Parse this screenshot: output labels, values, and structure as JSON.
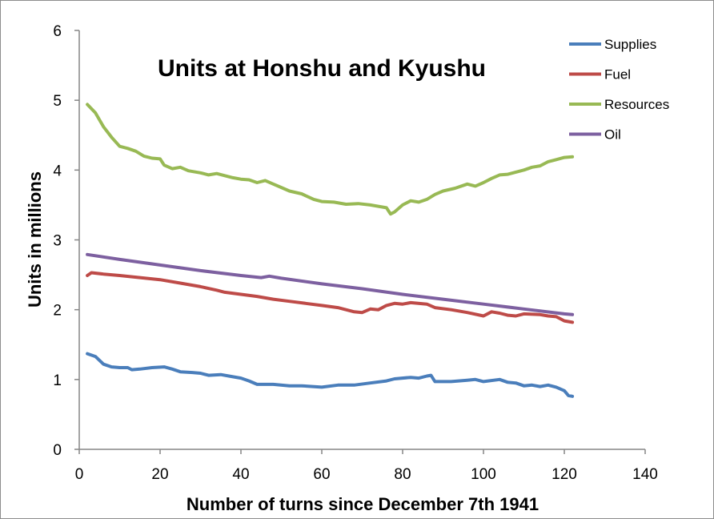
{
  "chart_data": {
    "type": "line",
    "title": "Units at Honshu and Kyushu",
    "xlabel": "Number of turns since December 7th 1941",
    "ylabel": "Units in millions",
    "xlim": [
      0,
      140
    ],
    "ylim": [
      0,
      6
    ],
    "x_ticks": [
      "0",
      "20",
      "40",
      "60",
      "80",
      "100",
      "120",
      "140"
    ],
    "y_ticks": [
      "0",
      "1",
      "2",
      "3",
      "4",
      "5",
      "6"
    ],
    "grid": false,
    "legend_position": "top-right",
    "series": [
      {
        "name": "Supplies",
        "color": "#4a7ebb",
        "points": [
          [
            2,
            1.37
          ],
          [
            4,
            1.33
          ],
          [
            6,
            1.22
          ],
          [
            8,
            1.18
          ],
          [
            10,
            1.17
          ],
          [
            12,
            1.17
          ],
          [
            13,
            1.14
          ],
          [
            15,
            1.15
          ],
          [
            18,
            1.17
          ],
          [
            21,
            1.18
          ],
          [
            23,
            1.15
          ],
          [
            25,
            1.11
          ],
          [
            28,
            1.1
          ],
          [
            30,
            1.09
          ],
          [
            32,
            1.06
          ],
          [
            35,
            1.07
          ],
          [
            37,
            1.05
          ],
          [
            40,
            1.02
          ],
          [
            42,
            0.98
          ],
          [
            44,
            0.93
          ],
          [
            48,
            0.93
          ],
          [
            52,
            0.91
          ],
          [
            55,
            0.91
          ],
          [
            60,
            0.89
          ],
          [
            64,
            0.92
          ],
          [
            68,
            0.92
          ],
          [
            72,
            0.95
          ],
          [
            76,
            0.98
          ],
          [
            78,
            1.01
          ],
          [
            82,
            1.03
          ],
          [
            84,
            1.02
          ],
          [
            86,
            1.05
          ],
          [
            87,
            1.06
          ],
          [
            88,
            0.97
          ],
          [
            92,
            0.97
          ],
          [
            96,
            0.99
          ],
          [
            98,
            1.0
          ],
          [
            100,
            0.97
          ],
          [
            104,
            1.0
          ],
          [
            106,
            0.96
          ],
          [
            108,
            0.95
          ],
          [
            110,
            0.91
          ],
          [
            112,
            0.92
          ],
          [
            114,
            0.9
          ],
          [
            116,
            0.92
          ],
          [
            118,
            0.89
          ],
          [
            120,
            0.84
          ],
          [
            121,
            0.77
          ],
          [
            122,
            0.76
          ]
        ]
      },
      {
        "name": "Fuel",
        "color": "#be4b48",
        "points": [
          [
            2,
            2.49
          ],
          [
            3,
            2.53
          ],
          [
            6,
            2.51
          ],
          [
            10,
            2.49
          ],
          [
            15,
            2.46
          ],
          [
            20,
            2.43
          ],
          [
            25,
            2.38
          ],
          [
            30,
            2.33
          ],
          [
            34,
            2.28
          ],
          [
            36,
            2.25
          ],
          [
            40,
            2.22
          ],
          [
            44,
            2.19
          ],
          [
            48,
            2.15
          ],
          [
            52,
            2.12
          ],
          [
            56,
            2.09
          ],
          [
            60,
            2.06
          ],
          [
            64,
            2.03
          ],
          [
            68,
            1.97
          ],
          [
            70,
            1.96
          ],
          [
            72,
            2.01
          ],
          [
            74,
            2.0
          ],
          [
            76,
            2.06
          ],
          [
            78,
            2.09
          ],
          [
            80,
            2.08
          ],
          [
            82,
            2.1
          ],
          [
            86,
            2.08
          ],
          [
            88,
            2.03
          ],
          [
            92,
            2.0
          ],
          [
            96,
            1.96
          ],
          [
            100,
            1.91
          ],
          [
            102,
            1.97
          ],
          [
            104,
            1.95
          ],
          [
            106,
            1.92
          ],
          [
            108,
            1.91
          ],
          [
            110,
            1.94
          ],
          [
            114,
            1.93
          ],
          [
            116,
            1.91
          ],
          [
            118,
            1.9
          ],
          [
            120,
            1.84
          ],
          [
            122,
            1.82
          ]
        ]
      },
      {
        "name": "Resources",
        "color": "#98b954",
        "points": [
          [
            2,
            4.94
          ],
          [
            4,
            4.82
          ],
          [
            6,
            4.62
          ],
          [
            8,
            4.47
          ],
          [
            10,
            4.34
          ],
          [
            12,
            4.31
          ],
          [
            14,
            4.27
          ],
          [
            16,
            4.2
          ],
          [
            18,
            4.17
          ],
          [
            20,
            4.16
          ],
          [
            21,
            4.07
          ],
          [
            23,
            4.02
          ],
          [
            25,
            4.04
          ],
          [
            27,
            3.99
          ],
          [
            30,
            3.96
          ],
          [
            32,
            3.93
          ],
          [
            34,
            3.95
          ],
          [
            36,
            3.92
          ],
          [
            38,
            3.89
          ],
          [
            40,
            3.87
          ],
          [
            42,
            3.86
          ],
          [
            44,
            3.82
          ],
          [
            46,
            3.85
          ],
          [
            48,
            3.8
          ],
          [
            50,
            3.75
          ],
          [
            52,
            3.7
          ],
          [
            55,
            3.66
          ],
          [
            58,
            3.58
          ],
          [
            60,
            3.55
          ],
          [
            63,
            3.54
          ],
          [
            66,
            3.51
          ],
          [
            69,
            3.52
          ],
          [
            72,
            3.5
          ],
          [
            76,
            3.46
          ],
          [
            77,
            3.37
          ],
          [
            78,
            3.4
          ],
          [
            80,
            3.5
          ],
          [
            82,
            3.56
          ],
          [
            84,
            3.54
          ],
          [
            86,
            3.58
          ],
          [
            88,
            3.65
          ],
          [
            90,
            3.7
          ],
          [
            93,
            3.74
          ],
          [
            96,
            3.8
          ],
          [
            98,
            3.77
          ],
          [
            100,
            3.82
          ],
          [
            102,
            3.88
          ],
          [
            104,
            3.93
          ],
          [
            106,
            3.94
          ],
          [
            108,
            3.97
          ],
          [
            110,
            4.0
          ],
          [
            112,
            4.04
          ],
          [
            114,
            4.06
          ],
          [
            116,
            4.12
          ],
          [
            118,
            4.15
          ],
          [
            120,
            4.18
          ],
          [
            122,
            4.19
          ]
        ]
      },
      {
        "name": "Oil",
        "color": "#7d60a0",
        "points": [
          [
            2,
            2.79
          ],
          [
            10,
            2.72
          ],
          [
            20,
            2.64
          ],
          [
            30,
            2.56
          ],
          [
            40,
            2.49
          ],
          [
            45,
            2.46
          ],
          [
            47,
            2.48
          ],
          [
            50,
            2.45
          ],
          [
            60,
            2.37
          ],
          [
            70,
            2.3
          ],
          [
            80,
            2.22
          ],
          [
            90,
            2.15
          ],
          [
            100,
            2.08
          ],
          [
            110,
            2.01
          ],
          [
            120,
            1.94
          ],
          [
            122,
            1.93
          ]
        ]
      }
    ]
  }
}
